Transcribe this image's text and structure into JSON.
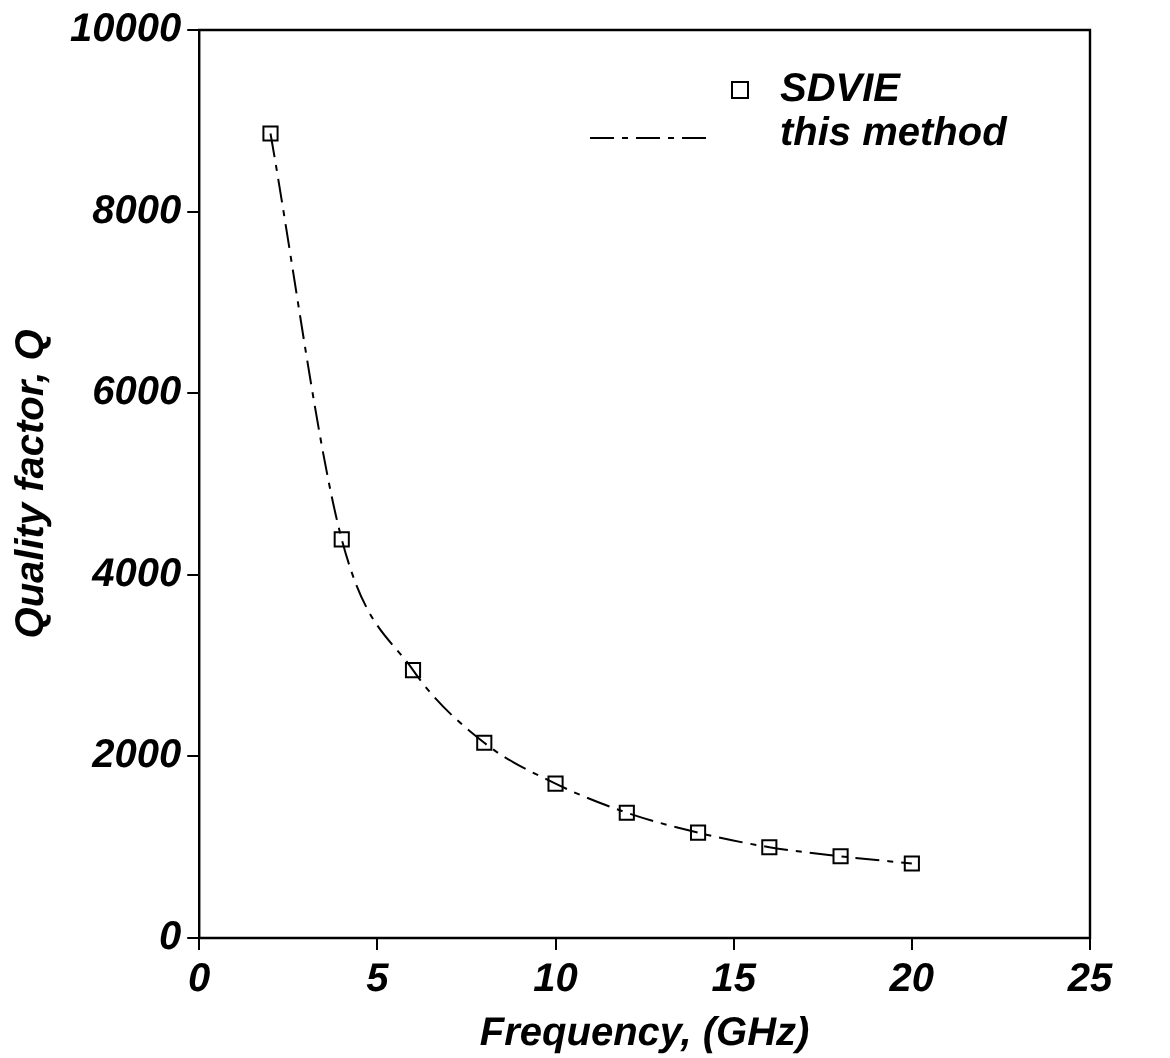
{
  "chart_data": {
    "type": "scatter",
    "xlabel": "Frequency, (GHz)",
    "ylabel": "Quality factor, Q",
    "xlim": [
      0,
      25
    ],
    "xticks": [
      0,
      5,
      10,
      15,
      20,
      25
    ],
    "ylim": [
      0,
      10000
    ],
    "yticks": [
      0,
      2000,
      4000,
      6000,
      8000,
      10000
    ],
    "legend": "top right",
    "grid": false,
    "series": [
      {
        "name": "SDVIE",
        "marker": "square",
        "color": "#000000",
        "x": [
          2,
          4,
          6,
          8,
          10,
          12,
          14,
          16,
          18,
          20
        ],
        "values": [
          8860,
          4390,
          2950,
          2150,
          1700,
          1380,
          1160,
          1000,
          900,
          820
        ]
      },
      {
        "name": "this method",
        "type": "line",
        "marker": "none",
        "line_style": "dashed",
        "color": "#000000",
        "x": [
          2,
          4,
          6,
          8,
          10,
          12,
          14,
          16,
          18,
          20
        ],
        "values": [
          8860,
          4390,
          2950,
          2150,
          1700,
          1380,
          1160,
          1000,
          900,
          820
        ]
      }
    ]
  }
}
